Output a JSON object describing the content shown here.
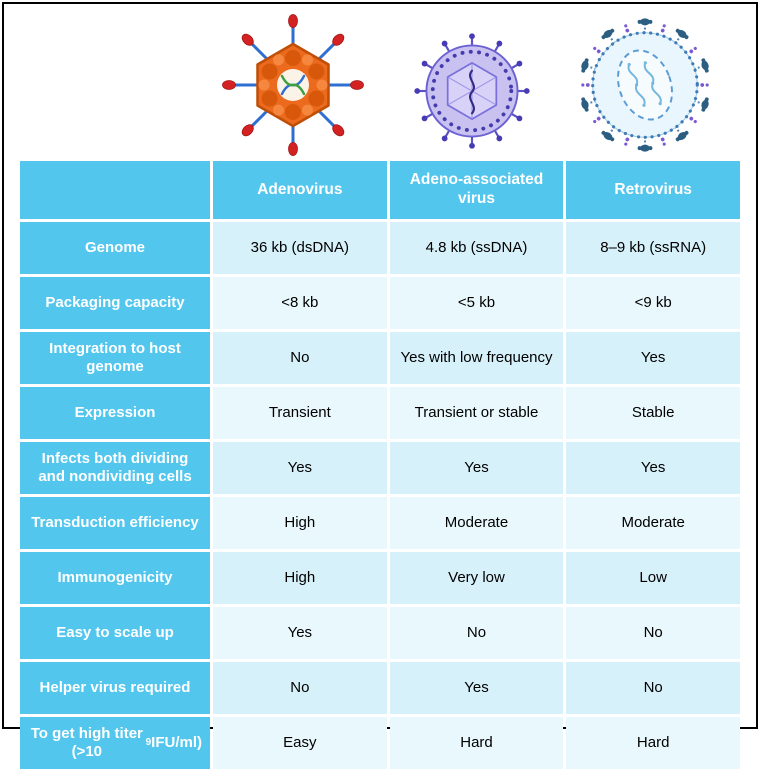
{
  "colors": {
    "header_bg": "#53C6ED",
    "header_text": "#FFFFFF",
    "row_light": "#D7F1FA",
    "row_lighter": "#E9F8FD",
    "value_text": "#000000",
    "frame_border": "#000000",
    "adenovirus_capsid": "#EC6A1E",
    "adenovirus_spike_tip": "#D42222",
    "aav_capsid": "#C9C2F1",
    "aav_outline": "#6C62D2",
    "retrovirus_envelope": "#3E7BB6",
    "retrovirus_spike_head": "#2B5E80"
  },
  "illustrations": [
    "adenovirus-icon",
    "aav-icon",
    "retrovirus-icon"
  ],
  "chart_data": {
    "type": "table",
    "columns": [
      "",
      "Adenovirus",
      "Adeno-associated virus",
      "Retrovirus"
    ],
    "rows": [
      {
        "label": "Genome",
        "values": [
          "36 kb (dsDNA)",
          "4.8 kb (ssDNA)",
          "8–9 kb (ssRNA)"
        ]
      },
      {
        "label": "Packaging capacity",
        "values": [
          "<8 kb",
          "<5 kb",
          "<9 kb"
        ]
      },
      {
        "label": "Integration to host genome",
        "values": [
          "No",
          "Yes with low frequency",
          "Yes"
        ]
      },
      {
        "label": "Expression",
        "values": [
          "Transient",
          "Transient or stable",
          "Stable"
        ]
      },
      {
        "label": "Infects both dividing and nondividing cells",
        "values": [
          "Yes",
          "Yes",
          "Yes"
        ]
      },
      {
        "label": "Transduction efficiency",
        "values": [
          "High",
          "Moderate",
          "Moderate"
        ]
      },
      {
        "label": "Immunogenicity",
        "values": [
          "High",
          "Very low",
          "Low"
        ]
      },
      {
        "label": "Easy to scale up",
        "values": [
          "Yes",
          "No",
          "No"
        ]
      },
      {
        "label": "Helper virus required",
        "values": [
          "No",
          "Yes",
          "No"
        ]
      },
      {
        "label": "To get high titer (>10⁹ IFU/ml)",
        "values": [
          "Easy",
          "Hard",
          "Hard"
        ]
      }
    ]
  }
}
